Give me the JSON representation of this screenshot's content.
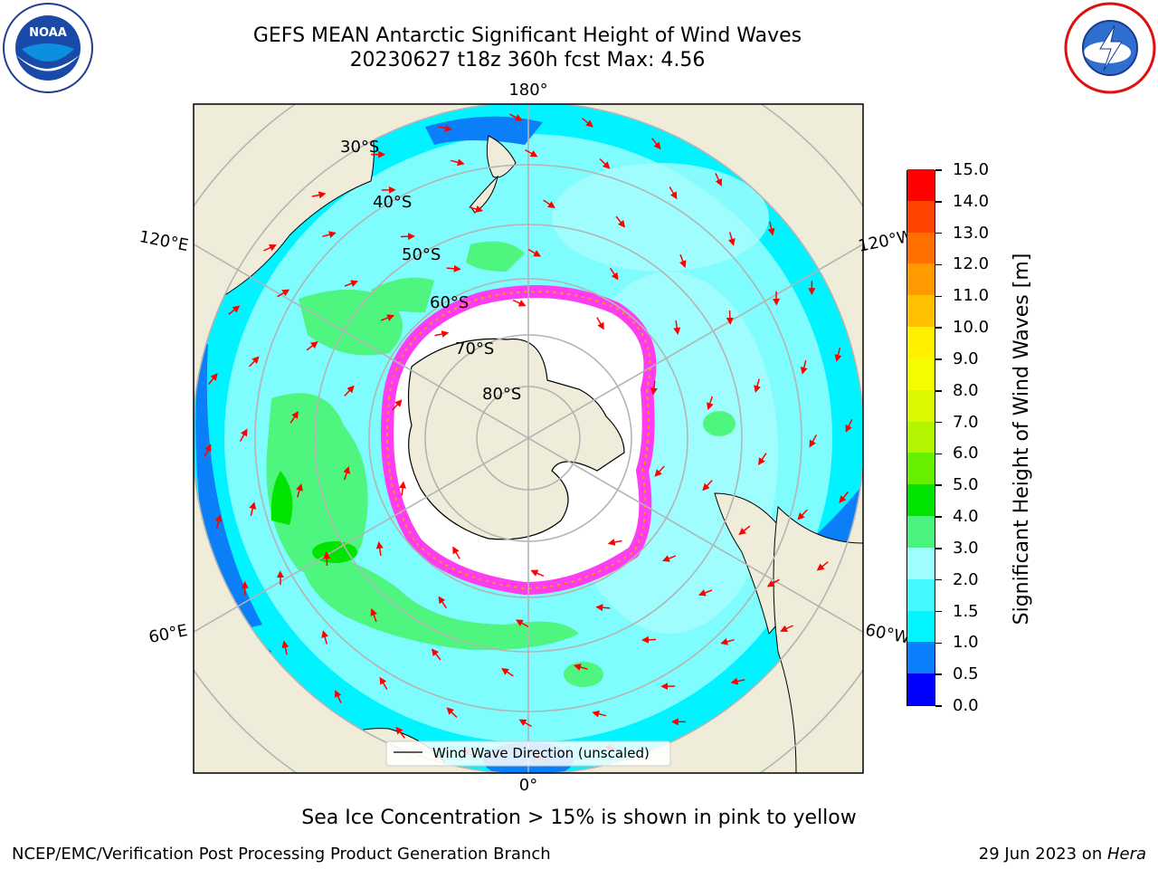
{
  "title": {
    "line1": "GEFS MEAN Antarctic Significant Height of Wind Waves",
    "line2": "20230627 t18z 360h fcst   Max: 4.56"
  },
  "map": {
    "projection": "south-polar-stereographic",
    "lon_labels": [
      "180°",
      "120°E",
      "120°W",
      "60°E",
      "60°W",
      "0°"
    ],
    "lat_labels": [
      "30°S",
      "40°S",
      "50°S",
      "60°S",
      "70°S",
      "80°S"
    ],
    "legend_label": "Wind Wave Direction (unscaled)",
    "colors": {
      "land": "#efedd9",
      "ocean_main": "#7ffcfd",
      "ocean_light": "#a8fdfd",
      "ocean_cyan": "#00f3ff",
      "ocean_blue": "#0b7ff7",
      "green": "#4ef57f",
      "ice_pink": "#ff3df0",
      "arrow": "#ff0000",
      "grid": "#b4b4b4"
    }
  },
  "colorbar": {
    "label": "Significant Height of Wind Waves [m]",
    "ticks": [
      "0.0",
      "0.5",
      "1.0",
      "1.5",
      "2.0",
      "3.0",
      "4.0",
      "5.0",
      "6.0",
      "7.0",
      "8.0",
      "9.0",
      "10.0",
      "11.0",
      "12.0",
      "13.0",
      "14.0",
      "15.0"
    ],
    "colors": [
      "#0000ff",
      "#0a80ff",
      "#00f5ff",
      "#42f9ff",
      "#a0fdfd",
      "#4af27e",
      "#00e400",
      "#66f000",
      "#b3f400",
      "#dcf800",
      "#f5fc00",
      "#fff000",
      "#ffc000",
      "#ff9a00",
      "#ff7000",
      "#ff4400",
      "#ff0000"
    ]
  },
  "logos": {
    "noaa_text": "NOAA"
  },
  "ice_note": "Sea Ice Concentration > 15% is shown in pink to yellow",
  "footer": {
    "left": "NCEP/EMC/Verification Post Processing Product Generation Branch",
    "right_prefix": "29 Jun 2023 on ",
    "right_italic": "Hera"
  }
}
